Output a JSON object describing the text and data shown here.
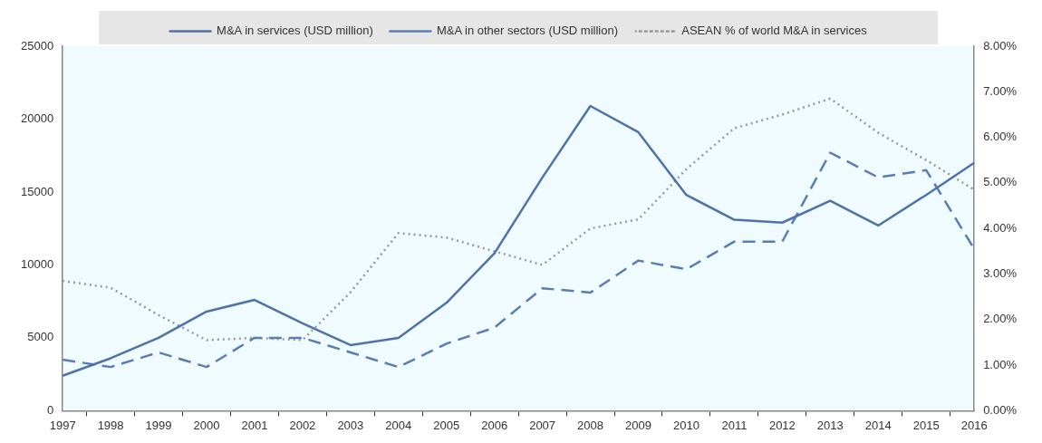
{
  "chart_data": {
    "type": "line",
    "categories": [
      "1997",
      "1998",
      "1999",
      "2000",
      "2001",
      "2002",
      "2003",
      "2004",
      "2005",
      "2006",
      "2007",
      "2008",
      "2009",
      "2010",
      "2011",
      "2012",
      "2013",
      "2014",
      "2015",
      "2016"
    ],
    "series": [
      {
        "name": "M&A in services (USD million)",
        "color": "#4f72a8",
        "line_style": "solid",
        "values": [
          2400,
          3600,
          5000,
          6800,
          7600,
          6000,
          4500,
          5000,
          7400,
          10800,
          16000,
          20900,
          19100,
          14800,
          13100,
          12900,
          14400,
          12700,
          14800,
          17000
        ]
      },
      {
        "name": "M&A in other sectors (USD million)",
        "color": "#5a7db3",
        "line_style": "dashed",
        "values": [
          3500,
          3000,
          4000,
          3000,
          5000,
          5000,
          4000,
          3000,
          4600,
          5700,
          8400,
          8100,
          10300,
          9700,
          11600,
          11600,
          17700,
          16000,
          16500,
          11100
        ]
      },
      {
        "name": "ASEAN % of world M&A in services",
        "color": "#9a9a9a",
        "line_style": "dotted",
        "axis": "y2",
        "values": [
          2.85,
          2.7,
          2.1,
          1.55,
          1.6,
          1.55,
          2.6,
          3.9,
          3.8,
          3.5,
          3.2,
          4.0,
          4.2,
          5.3,
          6.2,
          6.5,
          6.85,
          6.1,
          5.5,
          4.85
        ]
      }
    ],
    "ylim": [
      0,
      25000
    ],
    "yticks": [
      0,
      5000,
      10000,
      15000,
      20000,
      25000
    ],
    "y2lim": [
      0,
      8
    ],
    "y2ticks": [
      {
        "value": 0,
        "label": "0.00%"
      },
      {
        "value": 1,
        "label": "1.00%"
      },
      {
        "value": 2,
        "label": "2.00%"
      },
      {
        "value": 3,
        "label": "3.00%"
      },
      {
        "value": 4,
        "label": "4.00%"
      },
      {
        "value": 5,
        "label": "5.00%"
      },
      {
        "value": 6,
        "label": "6.00%"
      },
      {
        "value": 7,
        "label": "7.00%"
      },
      {
        "value": 8,
        "label": "8.00%"
      }
    ],
    "grid": false,
    "legend": "top",
    "marker": "none"
  }
}
